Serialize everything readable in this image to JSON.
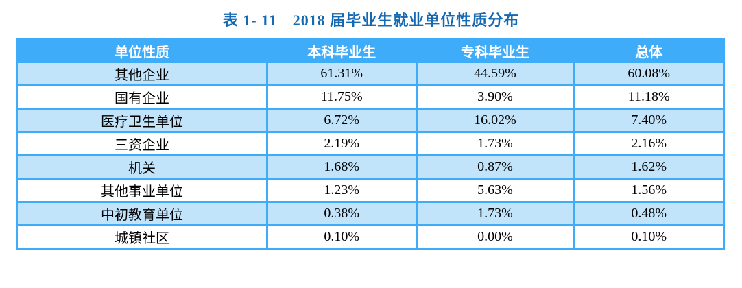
{
  "title": "表 1- 11　2018 届毕业生就业单位性质分布",
  "colors": {
    "title_color": "#1569B2",
    "header_bg": "#3FACFA",
    "header_text": "#FFFFFF",
    "border": "#3FACFA",
    "row_bg": "#FFFFFF",
    "row_alt_bg": "#C2E4FB"
  },
  "chart_data": {
    "type": "table",
    "title": "表 1- 11　2018 届毕业生就业单位性质分布",
    "columns": [
      "单位性质",
      "本科毕业生",
      "专科毕业生",
      "总体"
    ],
    "rows": [
      [
        "其他企业",
        "61.31%",
        "44.59%",
        "60.08%"
      ],
      [
        "国有企业",
        "11.75%",
        "3.90%",
        "11.18%"
      ],
      [
        "医疗卫生单位",
        "6.72%",
        "16.02%",
        "7.40%"
      ],
      [
        "三资企业",
        "2.19%",
        "1.73%",
        "2.16%"
      ],
      [
        "机关",
        "1.68%",
        "0.87%",
        "1.62%"
      ],
      [
        "其他事业单位",
        "1.23%",
        "5.63%",
        "1.56%"
      ],
      [
        "中初教育单位",
        "0.38%",
        "1.73%",
        "0.48%"
      ],
      [
        "城镇社区",
        "0.10%",
        "0.00%",
        "0.10%"
      ]
    ]
  }
}
